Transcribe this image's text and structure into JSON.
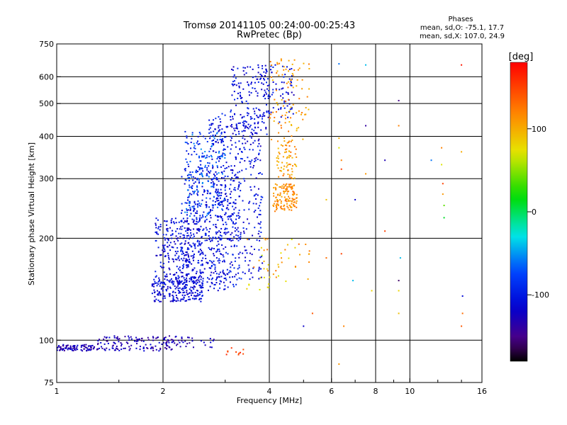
{
  "chart_data": {
    "type": "scatter",
    "title": "Tromsø 20141105 00:24:00-00:25:43",
    "subtitle": "RwPretec (Bp)",
    "xlabel": "Frequency [MHz]",
    "ylabel": "Stationary phase Virtual Height [km]",
    "x_scale": "log2",
    "y_scale": "log",
    "xlim": [
      1,
      16
    ],
    "ylim": [
      75,
      750
    ],
    "x_ticks": [
      {
        "value": 1,
        "label": "1"
      },
      {
        "value": 2,
        "label": "2"
      },
      {
        "value": 4,
        "label": "4"
      },
      {
        "value": 6,
        "label": "6"
      },
      {
        "value": 8,
        "label": "8"
      },
      {
        "value": 10,
        "label": "10"
      },
      {
        "value": 16,
        "label": "16"
      }
    ],
    "x_grid": [
      2,
      4,
      6,
      8,
      10
    ],
    "x_minor": [
      1.5,
      3,
      5,
      7,
      9,
      12,
      14
    ],
    "y_ticks": [
      {
        "value": 75,
        "label": "75"
      },
      {
        "value": 100,
        "label": "100"
      },
      {
        "value": 200,
        "label": "200"
      },
      {
        "value": 300,
        "label": "300"
      },
      {
        "value": 400,
        "label": "400"
      },
      {
        "value": 500,
        "label": "500"
      },
      {
        "value": 600,
        "label": "600"
      },
      {
        "value": 750,
        "label": "750"
      }
    ],
    "y_grid": [
      100,
      200,
      300,
      400,
      500,
      600
    ],
    "colorbar": {
      "label": "[deg]",
      "range": [
        -180,
        180
      ],
      "ticks": [
        {
          "value": 100,
          "label": "100"
        },
        {
          "value": 0,
          "label": "0"
        },
        {
          "value": -100,
          "label": "-100"
        }
      ]
    },
    "stats": {
      "heading": "Phases",
      "line1": "mean, sd,O: -75.1, 17.7",
      "line2": "mean, sd,X: 107.0, 24.9"
    },
    "series": [
      {
        "clusters": [
          {
            "f": [
              1.0,
              1.28
            ],
            "h": [
              93,
              97
            ],
            "phase": [
              -150,
              -110
            ],
            "n": 90
          },
          {
            "f": [
              1.3,
              2.2
            ],
            "h": [
              93,
              103
            ],
            "phase": [
              -150,
              -110
            ],
            "n": 140
          },
          {
            "f": [
              2.0,
              2.8
            ],
            "h": [
              95,
              102
            ],
            "phase": [
              -145,
              -110
            ],
            "n": 30
          },
          {
            "f": [
              1.85,
              2.6
            ],
            "h": [
              130,
              155
            ],
            "phase": [
              -130,
              -95
            ],
            "n": 250
          },
          {
            "f": [
              1.9,
              2.6
            ],
            "h": [
              155,
              230
            ],
            "phase": [
              -130,
              -90
            ],
            "n": 250
          },
          {
            "f": [
              2.25,
              3.3
            ],
            "h": [
              140,
              330
            ],
            "phase": [
              -125,
              -85
            ],
            "n": 380
          },
          {
            "f": [
              2.3,
              3.0
            ],
            "h": [
              230,
              420
            ],
            "phase": [
              -110,
              -50
            ],
            "n": 220
          },
          {
            "f": [
              2.7,
              3.85
            ],
            "h": [
              150,
              470
            ],
            "phase": [
              -130,
              -85
            ],
            "n": 380
          },
          {
            "f": [
              3.1,
              4.0
            ],
            "h": [
              400,
              650
            ],
            "phase": [
              -130,
              -90
            ],
            "n": 170
          },
          {
            "f": [
              3.85,
              4.7
            ],
            "h": [
              440,
              650
            ],
            "phase": [
              -130,
              -90
            ],
            "n": 70
          }
        ]
      },
      {
        "clusters": [
          {
            "f": [
              4.1,
              4.8
            ],
            "h": [
              240,
              290
            ],
            "phase": [
              100,
              130
            ],
            "n": 130
          },
          {
            "f": [
              4.2,
              4.8
            ],
            "h": [
              300,
              390
            ],
            "phase": [
              90,
              130
            ],
            "n": 70
          },
          {
            "f": [
              4.0,
              5.2
            ],
            "h": [
              390,
              680
            ],
            "phase": [
              90,
              130
            ],
            "n": 90
          },
          {
            "f": [
              3.4,
              5.2
            ],
            "h": [
              140,
              200
            ],
            "phase": [
              60,
              130
            ],
            "n": 50
          },
          {
            "f": [
              3.0,
              3.4
            ],
            "h": [
              90,
              95
            ],
            "phase": [
              140,
              170
            ],
            "n": 10
          }
        ]
      },
      {
        "points": [
          {
            "x": 6.3,
            "y": 655,
            "phase": -60
          },
          {
            "x": 7.5,
            "y": 650,
            "phase": -40
          },
          {
            "x": 6.3,
            "y": 395,
            "phase": 100
          },
          {
            "x": 6.3,
            "y": 370,
            "phase": 70
          },
          {
            "x": 6.4,
            "y": 340,
            "phase": 120
          },
          {
            "x": 6.4,
            "y": 320,
            "phase": 150
          },
          {
            "x": 7.0,
            "y": 260,
            "phase": -120
          },
          {
            "x": 7.5,
            "y": 430,
            "phase": -140
          },
          {
            "x": 7.5,
            "y": 310,
            "phase": 110
          },
          {
            "x": 8.5,
            "y": 340,
            "phase": -130
          },
          {
            "x": 8.5,
            "y": 210,
            "phase": 150
          },
          {
            "x": 9.3,
            "y": 510,
            "phase": -150
          },
          {
            "x": 9.3,
            "y": 430,
            "phase": 120
          },
          {
            "x": 9.4,
            "y": 175,
            "phase": -40
          },
          {
            "x": 9.3,
            "y": 150,
            "phase": -160
          },
          {
            "x": 9.3,
            "y": 140,
            "phase": 80
          },
          {
            "x": 9.3,
            "y": 120,
            "phase": 90
          },
          {
            "x": 11.5,
            "y": 340,
            "phase": -60
          },
          {
            "x": 12.3,
            "y": 370,
            "phase": 120
          },
          {
            "x": 12.3,
            "y": 330,
            "phase": 70
          },
          {
            "x": 12.4,
            "y": 290,
            "phase": 150
          },
          {
            "x": 12.4,
            "y": 270,
            "phase": 110
          },
          {
            "x": 12.5,
            "y": 250,
            "phase": 40
          },
          {
            "x": 12.5,
            "y": 230,
            "phase": 10
          },
          {
            "x": 14.0,
            "y": 650,
            "phase": 170
          },
          {
            "x": 14.0,
            "y": 360,
            "phase": 100
          },
          {
            "x": 14.1,
            "y": 135,
            "phase": -110
          },
          {
            "x": 14.1,
            "y": 120,
            "phase": 130
          },
          {
            "x": 14.0,
            "y": 110,
            "phase": 140
          },
          {
            "x": 6.4,
            "y": 180,
            "phase": 150
          },
          {
            "x": 6.3,
            "y": 85,
            "phase": 110
          },
          {
            "x": 6.9,
            "y": 150,
            "phase": -40
          },
          {
            "x": 6.5,
            "y": 110,
            "phase": 120
          },
          {
            "x": 5.8,
            "y": 260,
            "phase": 90
          },
          {
            "x": 5.8,
            "y": 175,
            "phase": 130
          },
          {
            "x": 5.3,
            "y": 120,
            "phase": 140
          },
          {
            "x": 5.0,
            "y": 110,
            "phase": -120
          },
          {
            "x": 7.8,
            "y": 140,
            "phase": 80
          }
        ]
      }
    ]
  }
}
